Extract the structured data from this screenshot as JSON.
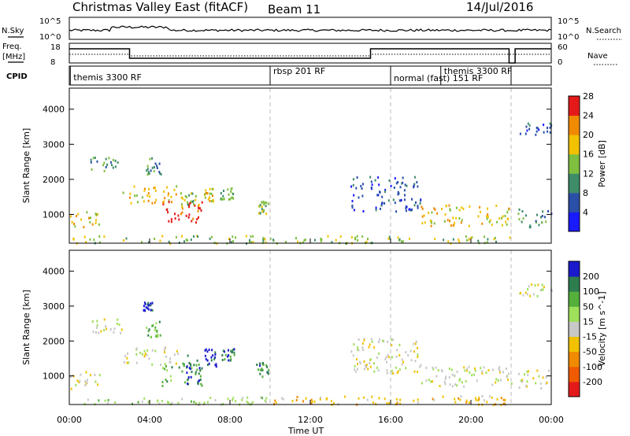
{
  "header": {
    "title": "Christmas Valley East (fitACF)",
    "beam": "Beam 11",
    "date": "14/Jul/2016"
  },
  "top_panels": {
    "nsky_label": "N.Sky",
    "nsky_tick_top": "10^5",
    "nsky_tick_bottom": "10^0",
    "nsearch_label": "N.Search",
    "nsearch_tick_top": "10^5",
    "nsearch_tick_bottom": "10^0",
    "freq_label": "Freq.",
    "freq_unit": "[MHz]",
    "freq_tick_top": "18",
    "freq_tick_bottom": "8",
    "nave_label": "Nave",
    "nave_tick_top": "60",
    "nave_tick_bottom": "0",
    "cpid_label": "CPID",
    "cpid_entries": [
      {
        "name": "themis 3300 RF",
        "start": 0.05,
        "end": 10.0
      },
      {
        "name": "rbsp 201 RF",
        "start": 10.0,
        "end": 16.0
      },
      {
        "name": "normal (fast) 151 RF",
        "start": 16.0,
        "end": 22.0
      },
      {
        "name": "themis 3300 RF",
        "start": 18.5,
        "end": 22.0
      }
    ]
  },
  "chart_data": [
    {
      "type": "heatmap",
      "name": "power",
      "ylabel": "Slant Range [km]",
      "yticks": [
        "1000",
        "2000",
        "3000",
        "4000"
      ],
      "ylim": [
        180,
        4600
      ],
      "colorbar_label": "Power [dB]",
      "colorbar_ticks": [
        "4",
        "8",
        "12",
        "16",
        "20",
        "24",
        "28"
      ],
      "colorbar_colors": [
        "#1a1aff",
        "#2a4fa8",
        "#3e8c6a",
        "#7fbf3f",
        "#f2c200",
        "#f08a00",
        "#e41a1a"
      ],
      "blobs": [
        {
          "t0": 0.0,
          "t1": 1.6,
          "r0": 650,
          "r1": 1150,
          "level": 4
        },
        {
          "t0": 1.0,
          "t1": 2.6,
          "r0": 2250,
          "r1": 2650,
          "level": 2
        },
        {
          "t0": 3.8,
          "t1": 4.6,
          "r0": 2150,
          "r1": 2650,
          "level": 2
        },
        {
          "t0": 2.6,
          "t1": 5.4,
          "r0": 1350,
          "r1": 1850,
          "level": 4
        },
        {
          "t0": 4.6,
          "t1": 6.6,
          "r0": 700,
          "r1": 1400,
          "level": 6
        },
        {
          "t0": 5.5,
          "t1": 6.5,
          "r0": 1200,
          "r1": 1650,
          "level": 3
        },
        {
          "t0": 6.7,
          "t1": 7.2,
          "r0": 1400,
          "r1": 1800,
          "level": 4
        },
        {
          "t0": 7.5,
          "t1": 8.2,
          "r0": 1450,
          "r1": 1800,
          "level": 3
        },
        {
          "t0": 9.3,
          "t1": 9.9,
          "r0": 1000,
          "r1": 1400,
          "level": 3
        },
        {
          "t0": 0.0,
          "t1": 22.0,
          "r0": 200,
          "r1": 420,
          "level": 3
        },
        {
          "t0": 14.0,
          "t1": 17.5,
          "r0": 1100,
          "r1": 2100,
          "level": 1
        },
        {
          "t0": 17.5,
          "t1": 22.0,
          "r0": 700,
          "r1": 1300,
          "level": 4
        },
        {
          "t0": 22.3,
          "t1": 24.0,
          "r0": 650,
          "r1": 1200,
          "level": 2
        },
        {
          "t0": 22.4,
          "t1": 24.0,
          "r0": 3300,
          "r1": 3650,
          "level": 1
        }
      ]
    },
    {
      "type": "heatmap",
      "name": "velocity",
      "ylabel": "Slant Range [km]",
      "yticks": [
        "1000",
        "2000",
        "3000",
        "4000"
      ],
      "ylim": [
        180,
        4600
      ],
      "colorbar_label": "Velocity [m s^-1]",
      "colorbar_ticks": [
        "200",
        "100",
        "50",
        "15",
        "-15",
        "-50",
        "-100",
        "-200"
      ],
      "colorbar_colors": [
        "#1a1acc",
        "#2e7d4f",
        "#54b03a",
        "#9ee05a",
        "#c8c8c8",
        "#f2c200",
        "#f08a00",
        "#f05a00",
        "#e41a1a"
      ],
      "blobs": [
        {
          "t0": 0.0,
          "t1": 1.6,
          "r0": 650,
          "r1": 1150,
          "level": 4
        },
        {
          "t0": 1.0,
          "t1": 2.6,
          "r0": 2250,
          "r1": 2650,
          "level": 4
        },
        {
          "t0": 3.8,
          "t1": 4.6,
          "r0": 2100,
          "r1": 2600,
          "level": 2
        },
        {
          "t0": 2.6,
          "t1": 5.4,
          "r0": 1350,
          "r1": 1850,
          "level": 4
        },
        {
          "t0": 4.6,
          "t1": 6.6,
          "r0": 700,
          "r1": 1400,
          "level": 2
        },
        {
          "t0": 5.8,
          "t1": 6.5,
          "r0": 800,
          "r1": 1650,
          "level": 0
        },
        {
          "t0": 6.7,
          "t1": 7.3,
          "r0": 1300,
          "r1": 1800,
          "level": 0
        },
        {
          "t0": 7.5,
          "t1": 8.2,
          "r0": 1450,
          "r1": 1800,
          "level": 1
        },
        {
          "t0": 9.3,
          "t1": 9.9,
          "r0": 1000,
          "r1": 1400,
          "level": 1
        },
        {
          "t0": 0.0,
          "t1": 10.0,
          "r0": 200,
          "r1": 420,
          "level": 3
        },
        {
          "t0": 10.0,
          "t1": 22.0,
          "r0": 200,
          "r1": 450,
          "level": 5
        },
        {
          "t0": 14.0,
          "t1": 17.5,
          "r0": 1100,
          "r1": 2100,
          "level": 4
        },
        {
          "t0": 17.5,
          "t1": 22.0,
          "r0": 700,
          "r1": 1300,
          "level": 4
        },
        {
          "t0": 22.3,
          "t1": 24.0,
          "r0": 650,
          "r1": 1200,
          "level": 4
        },
        {
          "t0": 22.4,
          "t1": 24.0,
          "r0": 3300,
          "r1": 3650,
          "level": 4
        },
        {
          "t0": 3.6,
          "t1": 4.1,
          "r0": 2900,
          "r1": 3150,
          "level": 0
        }
      ]
    }
  ],
  "time_axis": {
    "xlabel": "Time UT",
    "ticks": [
      "00:00",
      "04:00",
      "08:00",
      "12:00",
      "16:00",
      "20:00",
      "00:00"
    ],
    "dashed_lines_hours": [
      10.0,
      16.0,
      22.0
    ]
  }
}
